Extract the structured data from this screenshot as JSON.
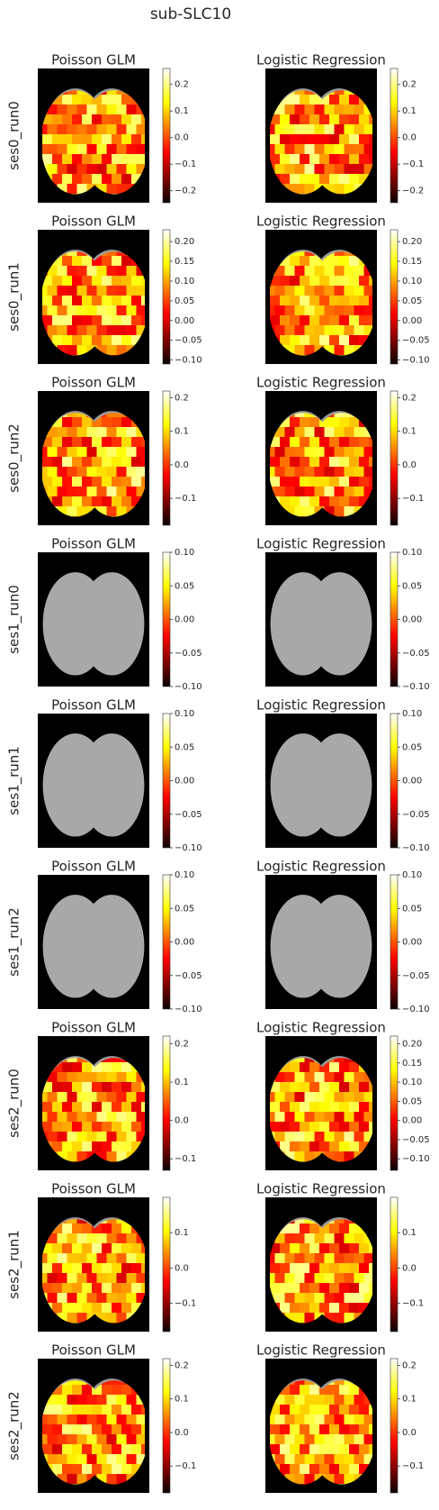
{
  "chart_data": {
    "type": "image-grid",
    "title": "sub-SLC10",
    "rows": [
      {
        "label": "ses0_run0",
        "panels": [
          {
            "title": "Poisson GLM",
            "colorbar": {
              "lim": [
                -0.245,
                0.26
              ],
              "ticks": [
                0.2,
                0.1,
                {
                  "value": 0,
                  "label": "0.0"
                },
                {
                  "value": -0.1,
                  "label": "−0.1"
                },
                {
                  "value": -0.2,
                  "label": "−0.2"
                }
              ]
            }
          },
          {
            "title": "Logistic Regression",
            "colorbar": {
              "lim": [
                -0.245,
                0.26
              ],
              "ticks": [
                0.2,
                0.1,
                {
                  "value": 0,
                  "label": "0.0"
                },
                {
                  "value": -0.1,
                  "label": "−0.1"
                },
                {
                  "value": -0.2,
                  "label": "−0.2"
                }
              ]
            }
          }
        ]
      },
      {
        "label": "ses0_run1",
        "panels": [
          {
            "title": "Poisson GLM",
            "colorbar": {
              "lim": [
                -0.11,
                0.23
              ],
              "ticks": [
                {
                  "value": 0.2,
                  "label": "0.20"
                },
                0.15,
                {
                  "value": 0.1,
                  "label": "0.10"
                },
                0.05,
                {
                  "value": 0,
                  "label": "0.00"
                },
                {
                  "value": -0.05,
                  "label": "−0.05"
                },
                {
                  "value": -0.1,
                  "label": "−0.10"
                }
              ]
            }
          },
          {
            "title": "Logistic Regression",
            "colorbar": {
              "lim": [
                -0.11,
                0.23
              ],
              "ticks": [
                {
                  "value": 0.2,
                  "label": "0.20"
                },
                0.15,
                {
                  "value": 0.1,
                  "label": "0.10"
                },
                0.05,
                {
                  "value": 0,
                  "label": "0.00"
                },
                {
                  "value": -0.05,
                  "label": "−0.05"
                },
                {
                  "value": -0.1,
                  "label": "−0.10"
                }
              ]
            }
          }
        ]
      },
      {
        "label": "ses0_run2",
        "panels": [
          {
            "title": "Poisson GLM",
            "colorbar": {
              "lim": [
                -0.18,
                0.22
              ],
              "ticks": [
                0.2,
                0.1,
                {
                  "value": 0,
                  "label": "0.0"
                },
                {
                  "value": -0.1,
                  "label": "−0.1"
                }
              ]
            }
          },
          {
            "title": "Logistic Regression",
            "colorbar": {
              "lim": [
                -0.18,
                0.22
              ],
              "ticks": [
                0.2,
                0.1,
                {
                  "value": 0,
                  "label": "0.0"
                },
                {
                  "value": -0.1,
                  "label": "−0.1"
                }
              ]
            }
          }
        ]
      },
      {
        "label": "ses1_run0",
        "panels": [
          {
            "title": "Poisson GLM",
            "colorbar": {
              "lim": [
                -0.1,
                0.1
              ],
              "ticks": [
                {
                  "value": 0.1,
                  "label": "0.10"
                },
                0.05,
                {
                  "value": 0,
                  "label": "0.00"
                },
                {
                  "value": -0.05,
                  "label": "−0.05"
                },
                {
                  "value": -0.1,
                  "label": "−0.10"
                }
              ]
            }
          },
          {
            "title": "Logistic Regression",
            "colorbar": {
              "lim": [
                -0.1,
                0.1
              ],
              "ticks": [
                {
                  "value": 0.1,
                  "label": "0.10"
                },
                0.05,
                {
                  "value": 0,
                  "label": "0.00"
                },
                {
                  "value": -0.05,
                  "label": "−0.05"
                },
                {
                  "value": -0.1,
                  "label": "−0.10"
                }
              ]
            }
          }
        ]
      },
      {
        "label": "ses1_run1",
        "panels": [
          {
            "title": "Poisson GLM",
            "colorbar": {
              "lim": [
                -0.1,
                0.1
              ],
              "ticks": [
                {
                  "value": 0.1,
                  "label": "0.10"
                },
                0.05,
                {
                  "value": 0,
                  "label": "0.00"
                },
                {
                  "value": -0.05,
                  "label": "−0.05"
                },
                {
                  "value": -0.1,
                  "label": "−0.10"
                }
              ]
            }
          },
          {
            "title": "Logistic Regression",
            "colorbar": {
              "lim": [
                -0.1,
                0.1
              ],
              "ticks": [
                {
                  "value": 0.1,
                  "label": "0.10"
                },
                0.05,
                {
                  "value": 0,
                  "label": "0.00"
                },
                {
                  "value": -0.05,
                  "label": "−0.05"
                },
                {
                  "value": -0.1,
                  "label": "−0.10"
                }
              ]
            }
          }
        ]
      },
      {
        "label": "ses1_run2",
        "panels": [
          {
            "title": "Poisson GLM",
            "colorbar": {
              "lim": [
                -0.1,
                0.1
              ],
              "ticks": [
                {
                  "value": 0.1,
                  "label": "0.10"
                },
                0.05,
                {
                  "value": 0,
                  "label": "0.00"
                },
                {
                  "value": -0.05,
                  "label": "−0.05"
                },
                {
                  "value": -0.1,
                  "label": "−0.10"
                }
              ]
            }
          },
          {
            "title": "Logistic Regression",
            "colorbar": {
              "lim": [
                -0.1,
                0.1
              ],
              "ticks": [
                {
                  "value": 0.1,
                  "label": "0.10"
                },
                0.05,
                {
                  "value": 0,
                  "label": "0.00"
                },
                {
                  "value": -0.05,
                  "label": "−0.05"
                },
                {
                  "value": -0.1,
                  "label": "−0.10"
                }
              ]
            }
          }
        ]
      },
      {
        "label": "ses2_run0",
        "panels": [
          {
            "title": "Poisson GLM",
            "colorbar": {
              "lim": [
                -0.13,
                0.22
              ],
              "ticks": [
                0.2,
                0.1,
                {
                  "value": 0,
                  "label": "0.0"
                },
                {
                  "value": -0.1,
                  "label": "−0.1"
                }
              ]
            }
          },
          {
            "title": "Logistic Regression",
            "colorbar": {
              "lim": [
                -0.13,
                0.22
              ],
              "ticks": [
                {
                  "value": 0.2,
                  "label": "0.20"
                },
                0.15,
                {
                  "value": 0.1,
                  "label": "0.10"
                },
                0.05,
                {
                  "value": 0,
                  "label": "0.00"
                },
                {
                  "value": -0.05,
                  "label": "−0.05"
                },
                {
                  "value": -0.1,
                  "label": "−0.10"
                }
              ]
            }
          }
        ]
      },
      {
        "label": "ses2_run1",
        "panels": [
          {
            "title": "Poisson GLM",
            "colorbar": {
              "lim": [
                -0.18,
                0.2
              ],
              "ticks": [
                0.1,
                {
                  "value": 0,
                  "label": "0.0"
                },
                {
                  "value": -0.1,
                  "label": "−0.1"
                }
              ]
            }
          },
          {
            "title": "Logistic Regression",
            "colorbar": {
              "lim": [
                -0.18,
                0.2
              ],
              "ticks": [
                0.1,
                {
                  "value": 0,
                  "label": "0.0"
                },
                {
                  "value": -0.1,
                  "label": "−0.1"
                }
              ]
            }
          }
        ]
      },
      {
        "label": "ses2_run2",
        "panels": [
          {
            "title": "Poisson GLM",
            "colorbar": {
              "lim": [
                -0.18,
                0.22
              ],
              "ticks": [
                0.2,
                0.1,
                {
                  "value": 0,
                  "label": "0.0"
                },
                {
                  "value": -0.1,
                  "label": "−0.1"
                }
              ]
            }
          },
          {
            "title": "Logistic Regression",
            "colorbar": {
              "lim": [
                -0.18,
                0.22
              ],
              "ticks": [
                0.2,
                0.1,
                {
                  "value": 0,
                  "label": "0.0"
                },
                {
                  "value": -0.1,
                  "label": "−0.1"
                }
              ]
            }
          }
        ]
      }
    ]
  }
}
